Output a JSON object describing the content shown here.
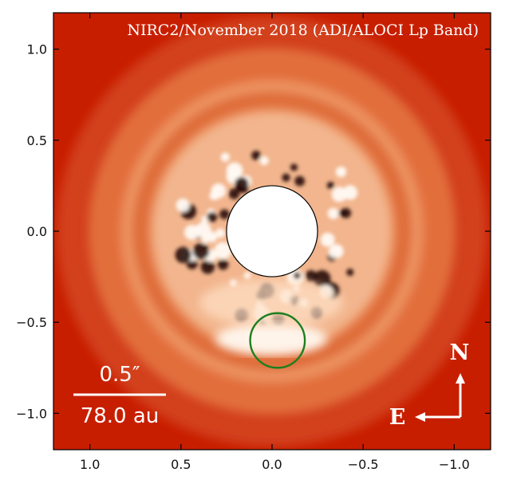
{
  "figure": {
    "title": "NIRC2/November 2018 (ADI/ALOCI Lp Band)",
    "colormap": {
      "background": "#c81e00",
      "mid": "#e8743c",
      "bright": "#fff6ec"
    }
  },
  "axes": {
    "x": {
      "range": [
        1.2,
        -1.2
      ],
      "ticks": [
        1.0,
        0.5,
        0.0,
        -0.5,
        -1.0
      ],
      "tick_labels": [
        "1.0",
        "0.5",
        "0.0",
        "−0.5",
        "−1.0"
      ]
    },
    "y": {
      "range": [
        -1.2,
        1.2
      ],
      "ticks": [
        1.0,
        0.5,
        0.0,
        -0.5,
        -1.0
      ],
      "tick_labels": [
        "1.0",
        "0.5",
        "0.0",
        "−0.5",
        "−1.0"
      ]
    }
  },
  "scale_bar": {
    "angular_label": "0.5″",
    "physical_label": "78.0 au",
    "length_arcsec": 0.5
  },
  "compass": {
    "north": "N",
    "east": "E"
  },
  "features": {
    "coronagraph_mask": {
      "x": 0.0,
      "y": 0.0,
      "radius": 0.25,
      "color": "#ffffff"
    },
    "candidate_circle": {
      "x": -0.03,
      "y": -0.6,
      "radius": 0.15,
      "color": "#1e7f1e"
    }
  }
}
